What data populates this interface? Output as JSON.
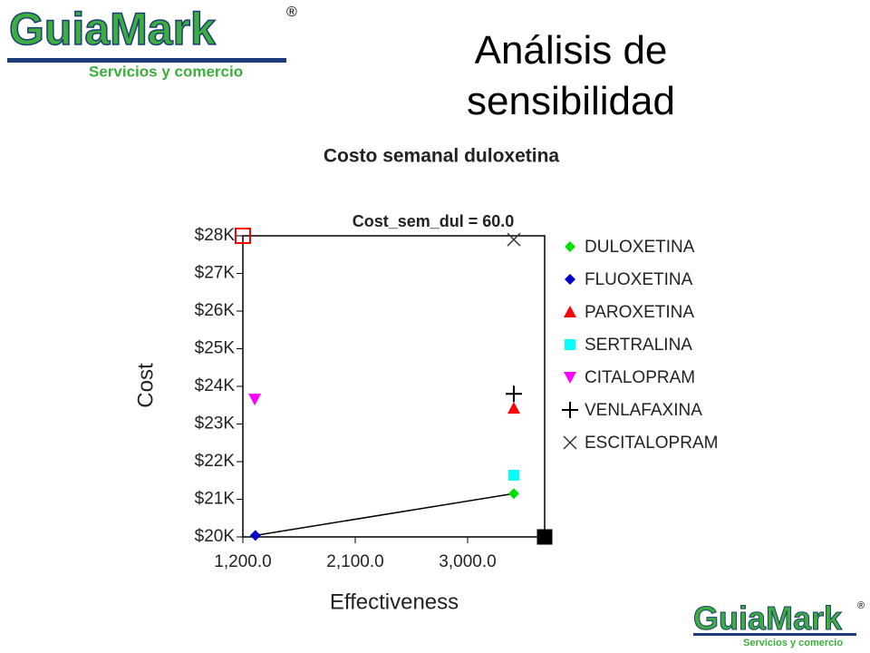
{
  "slide": {
    "title": "Análisis de sensibilidad",
    "logo": {
      "brand_first": "Guia",
      "brand_second": "Mark",
      "registered": "®",
      "tagline": "Servicios y comercio"
    }
  },
  "chart_data": {
    "type": "scatter",
    "title": "Costo semanal duloxetina",
    "subtitle": "Cost_sem_dul = 60.0",
    "x_label": "Effectiveness",
    "y_label": "Cost",
    "xlim": [
      1200,
      3617
    ],
    "ylim": [
      20000,
      28000
    ],
    "xticks": [
      {
        "value": 1200,
        "label": "1,200.0"
      },
      {
        "value": 2100,
        "label": "2,100.0"
      },
      {
        "value": 3000,
        "label": "3,000.0"
      }
    ],
    "yticks": [
      {
        "value": 20000,
        "label": "$20K"
      },
      {
        "value": 21000,
        "label": "$21K"
      },
      {
        "value": 22000,
        "label": "$22K"
      },
      {
        "value": 23000,
        "label": "$23K"
      },
      {
        "value": 24000,
        "label": "$24K"
      },
      {
        "value": 25000,
        "label": "$25K"
      },
      {
        "value": 26000,
        "label": "$26K"
      },
      {
        "value": 27000,
        "label": "$27K"
      },
      {
        "value": 28000,
        "label": "$28K"
      }
    ],
    "series": [
      {
        "name": "DULOXETINA",
        "color": "#00e000",
        "marker": "diamond",
        "x": [
          3370
        ],
        "values": [
          21150
        ]
      },
      {
        "name": "FLUOXETINA",
        "color": "#0000c8",
        "marker": "diamond",
        "x": [
          1300
        ],
        "values": [
          20040
        ]
      },
      {
        "name": "PAROXETINA",
        "color": "#ff0000",
        "marker": "triangle",
        "x": [
          3370
        ],
        "values": [
          23420
        ]
      },
      {
        "name": "SERTRALINA",
        "color": "#00ffff",
        "marker": "square",
        "x": [
          3370
        ],
        "values": [
          21640
        ]
      },
      {
        "name": "CITALOPRAM",
        "color": "#ff00ff",
        "marker": "triangle-down",
        "x": [
          1295
        ],
        "values": [
          23660
        ]
      },
      {
        "name": "VENLAFAXINA",
        "color": "#000000",
        "marker": "plus",
        "x": [
          3370
        ],
        "values": [
          23800
        ]
      },
      {
        "name": "ESCITALOPRAM",
        "color": "#333333",
        "marker": "cross",
        "x": [
          3370
        ],
        "values": [
          27900
        ]
      }
    ]
  }
}
